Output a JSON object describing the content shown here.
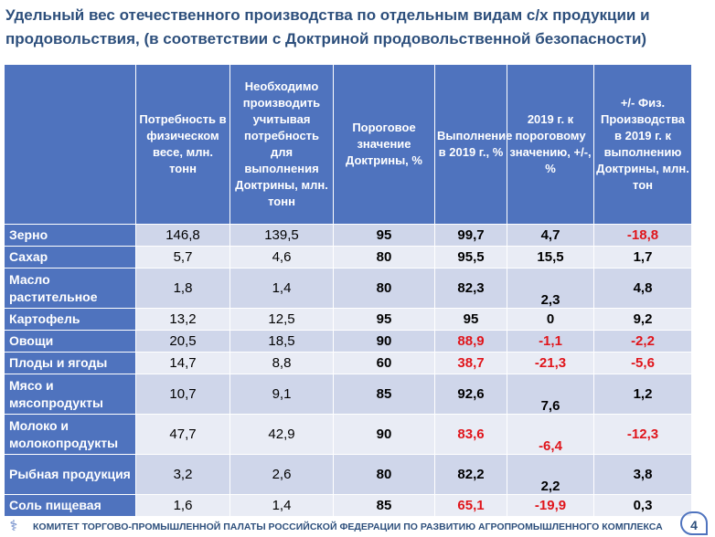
{
  "slide": {
    "title": "Удельный вес отечественного производства по отдельным видам с/х продукции и продовольствия, (в соответствии с Доктриной продовольственной безопасности)",
    "footer": "КОМИТЕТ ТОРГОВО-ПРОМЫШЛЕННОЙ ПАЛАТЫ РОССИЙСКОЙ ФЕДЕРАЦИИ ПО РАЗВИТИЮ АГРОПРОМЫШЛЕННОГО КОМПЛЕКСА",
    "page_number": "4",
    "logo_icon": "tpp-logo-icon"
  },
  "colors": {
    "header_bg": "#4f73be",
    "row_odd": "#cfd6ea",
    "row_even": "#e9ecf5",
    "negative": "#e0151b",
    "title": "#2d4f7c"
  },
  "table": {
    "headers": [
      "",
      "Потребность в физическом весе, млн. тонн",
      "Необходимо производить учитывая потребность для выполнения Доктрины, млн. тонн",
      "Пороговое значение Доктрины, %",
      "Выполнение в 2019 г., %",
      "2019 г. к пороговому значению, +/-, %",
      "+/- Физ. Производства в 2019 г. к выполнению Доктрины, млн. тон"
    ],
    "rows": [
      {
        "name": "Зерно",
        "cells": [
          "146,8",
          "139,5",
          "95",
          "99,7",
          "4,7",
          "-18,8"
        ]
      },
      {
        "name": "Сахар",
        "cells": [
          "5,7",
          "4,6",
          "80",
          "95,5",
          "15,5",
          "1,7"
        ]
      },
      {
        "name": "Масло растительное",
        "cells": [
          "1,8",
          "1,4",
          "80",
          "82,3",
          "2,3",
          "4,8"
        ]
      },
      {
        "name": "Картофель",
        "cells": [
          "13,2",
          "12,5",
          "95",
          "95",
          "0",
          "9,2"
        ]
      },
      {
        "name": "Овощи",
        "cells": [
          "20,5",
          "18,5",
          "90",
          "88,9",
          "-1,1",
          "-2,2"
        ]
      },
      {
        "name": "Плоды и ягоды",
        "cells": [
          "14,7",
          "8,8",
          "60",
          "38,7",
          "-21,3",
          "-5,6"
        ]
      },
      {
        "name": "Мясо и мясопродукты",
        "cells": [
          "10,7",
          "9,1",
          "85",
          "92,6",
          "7,6",
          "1,2"
        ]
      },
      {
        "name": "Молоко и молокопродукты",
        "cells": [
          "47,7",
          "42,9",
          "90",
          "83,6",
          "-6,4",
          "-12,3"
        ]
      },
      {
        "name": "Рыбная продукция",
        "cells": [
          "3,2",
          "2,6",
          "80",
          "82,2",
          "2,2",
          "3,8"
        ]
      },
      {
        "name": "Соль пищевая",
        "cells": [
          "1,6",
          "1,4",
          "85",
          "65,1",
          "-19,9",
          "0,3"
        ]
      }
    ]
  }
}
